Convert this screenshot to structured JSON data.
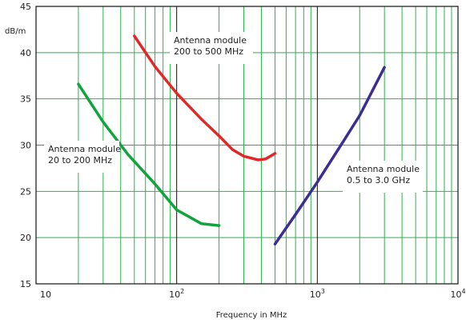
{
  "chart_data": {
    "type": "line",
    "xlabel": "Frequency in MHz",
    "ylabel": "dB/m",
    "xscale": "log",
    "xlim": [
      10,
      10000
    ],
    "ylim": [
      15,
      45
    ],
    "y_ticks": [
      15,
      20,
      25,
      30,
      35,
      40,
      45
    ],
    "x_ticks": [
      {
        "base": "10",
        "exp": ""
      },
      {
        "base": "10",
        "exp": "2"
      },
      {
        "base": "10",
        "exp": "3"
      },
      {
        "base": "10",
        "exp": "4"
      }
    ],
    "grid": true,
    "grid_color": "#2bb24c",
    "decade_line_color": "#111111",
    "series": [
      {
        "name": "Antenna module 20 to 200 MHz",
        "label_lines": [
          "Antenna module",
          "20 to 200 MHz"
        ],
        "color": "#12a43c",
        "x": [
          20,
          30,
          45,
          70,
          100,
          150,
          200
        ],
        "y": [
          36.6,
          32.5,
          29.0,
          25.8,
          23.0,
          21.5,
          21.3
        ]
      },
      {
        "name": "Antenna module 200 to 500 MHz",
        "label_lines": [
          "Antenna module",
          "200 to 500 MHz"
        ],
        "color": "#e02828",
        "x": [
          50,
          70,
          100,
          150,
          200,
          250,
          300,
          380,
          430,
          500
        ],
        "y": [
          41.8,
          38.5,
          35.6,
          32.8,
          31.0,
          29.5,
          28.8,
          28.4,
          28.5,
          29.1
        ]
      },
      {
        "name": "Antenna module 0.5 to 3.0 GHz",
        "label_lines": [
          "Antenna module",
          "0.5 to 3.0 GHz"
        ],
        "color": "#3b2d96",
        "x": [
          500,
          700,
          1000,
          1500,
          2000,
          3000
        ],
        "y": [
          19.3,
          22.5,
          26.0,
          30.2,
          33.2,
          38.4
        ]
      }
    ]
  }
}
